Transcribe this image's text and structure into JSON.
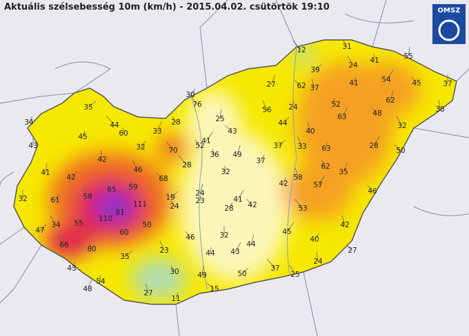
{
  "header": {
    "title": "Aktuális szélsebesség 10m (km/h) - 2015.04.02. csütörtök 19:10",
    "logo": "OMSZ"
  },
  "stations": [
    12,
    31,
    55,
    39,
    24,
    41,
    27,
    62,
    37,
    41,
    54,
    45,
    37,
    30,
    76,
    52,
    62,
    35,
    56,
    24,
    63,
    48,
    38,
    34,
    44,
    28,
    25,
    44,
    32,
    60,
    33,
    43,
    40,
    45,
    41,
    52,
    43,
    32,
    70,
    36,
    49,
    37,
    33,
    63,
    28,
    50,
    42,
    37,
    28,
    62,
    41,
    42,
    46,
    32,
    35,
    68,
    58,
    42,
    57,
    46,
    32,
    61,
    65,
    59,
    24,
    19,
    58,
    23,
    41,
    42,
    111,
    28,
    53,
    24,
    81,
    47,
    34,
    55,
    110,
    50,
    42,
    60,
    45,
    46,
    32,
    40,
    66,
    80,
    44,
    35,
    23,
    44,
    43,
    27,
    24,
    43,
    37,
    30,
    49,
    50,
    25,
    54,
    48,
    15,
    27,
    11
  ]
}
